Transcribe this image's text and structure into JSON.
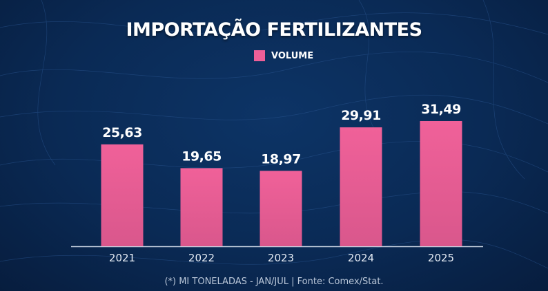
{
  "chart_data": {
    "type": "bar",
    "title": "IMPORTAÇÃO FERTILIZANTES",
    "legend": [
      {
        "name": "VOLUME",
        "color": "#ee5f98"
      }
    ],
    "legend_position": "top-center",
    "categories": [
      "2021",
      "2022",
      "2023",
      "2024",
      "2025"
    ],
    "series": [
      {
        "name": "VOLUME",
        "values": [
          25.63,
          19.65,
          18.97,
          29.91,
          31.49
        ]
      }
    ],
    "data_labels": [
      "25,63",
      "19,65",
      "18,97",
      "29,91",
      "31,49"
    ],
    "xlabel": "",
    "ylabel": "",
    "ylim": [
      0,
      35
    ],
    "grid": false,
    "footnote": "(*) MI TONELADAS - JAN/JUL | Fonte: Comex/Stat."
  },
  "colors": {
    "bar": "#ee5f98",
    "background": "#0a2a55"
  }
}
